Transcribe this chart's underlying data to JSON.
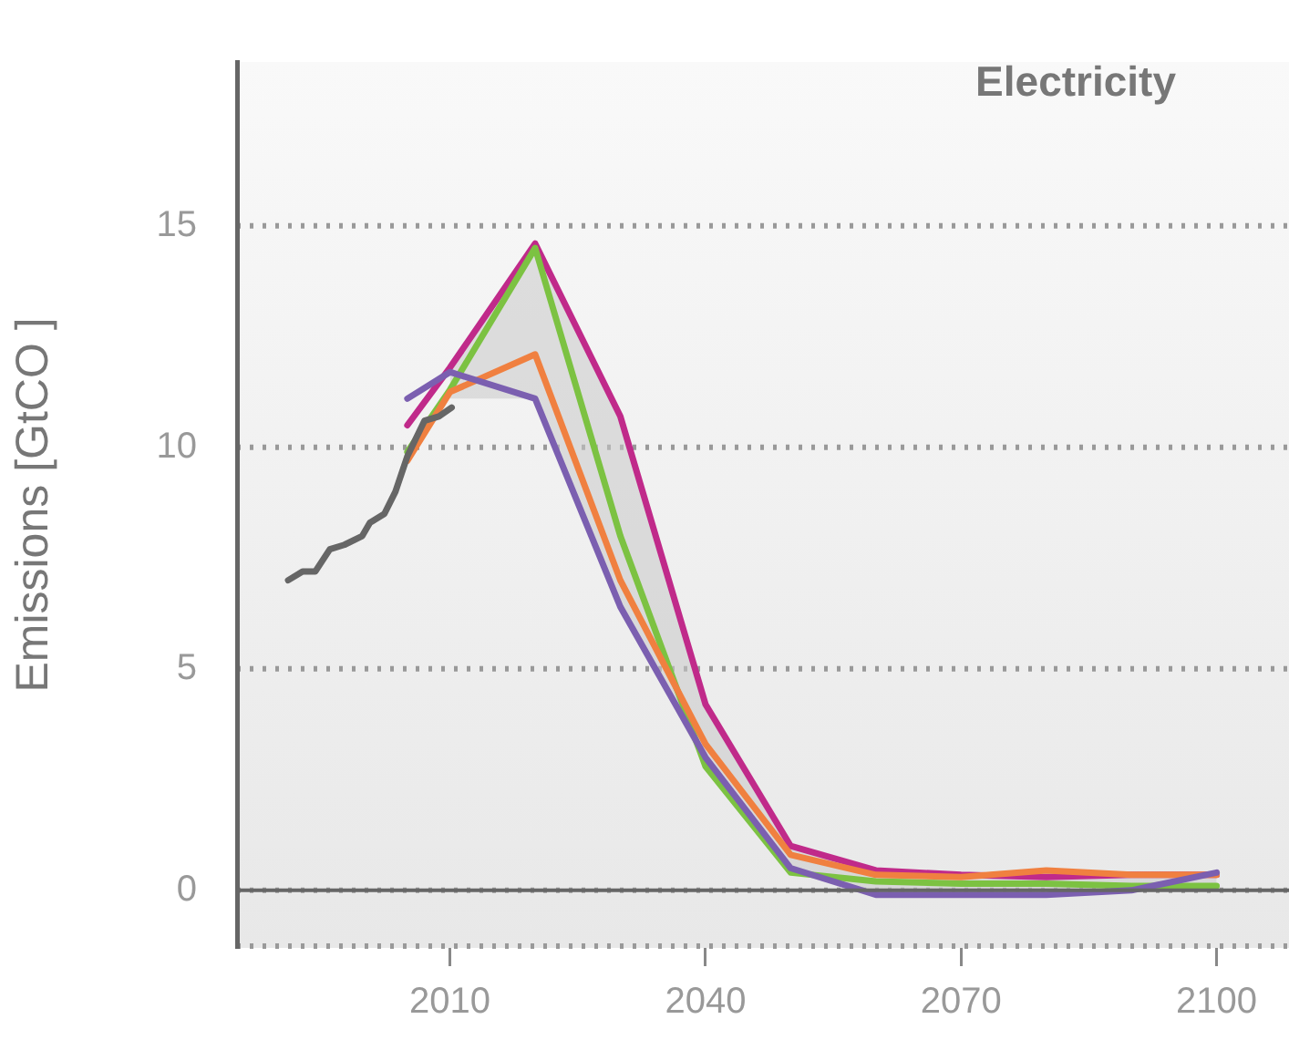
{
  "chart_data": {
    "type": "line",
    "title": "Electricity",
    "ylabel": "Emissions [GtCO ]",
    "xlim": [
      1985,
      2108.5
    ],
    "ylim": [
      -1.3,
      18.7
    ],
    "xticks": [
      2010,
      2040,
      2070,
      2100
    ],
    "yticks": [
      0,
      5,
      10,
      15
    ],
    "grid": "y",
    "legend": false,
    "marker": "none",
    "line_style": "solid",
    "ref_lines": [
      {
        "axis": "y",
        "value": 0,
        "color": "#666666"
      }
    ],
    "x": [
      2005,
      2010,
      2020,
      2030,
      2040,
      2050,
      2060,
      2070,
      2080,
      2090,
      2100
    ],
    "series": [
      {
        "color": "#666666",
        "x": [
          1991,
          1992.7,
          1994.2,
          1995.9,
          1997.6,
          1999.7,
          2000.6,
          2002.3,
          2003.6,
          2005,
          2007,
          2008.7,
          2010.2
        ],
        "values": [
          7.0,
          7.2,
          7.2,
          7.7,
          7.8,
          8.0,
          8.3,
          8.5,
          9.0,
          9.8,
          10.6,
          10.7,
          10.9
        ]
      },
      {
        "color": "#7b5fb0",
        "values": [
          11.1,
          11.7,
          11.1,
          6.4,
          3.0,
          0.5,
          -0.1,
          -0.1,
          -0.1,
          0.0,
          0.4
        ]
      },
      {
        "color": "#f08040",
        "values": [
          9.7,
          11.25,
          12.1,
          7.0,
          3.3,
          0.8,
          0.35,
          0.3,
          0.45,
          0.35,
          0.35
        ]
      },
      {
        "color": "#7cc242",
        "values": [
          9.9,
          11.3,
          14.5,
          8.0,
          2.8,
          0.4,
          0.2,
          0.15,
          0.15,
          0.1,
          0.1
        ]
      },
      {
        "color": "#c02a8a",
        "values": [
          10.5,
          11.8,
          14.6,
          10.7,
          4.2,
          1.0,
          0.45,
          0.35,
          0.3,
          0.35,
          0.35
        ],
        "lower": [
          null,
          11.1,
          11.1,
          6.4,
          2.8,
          0.4,
          -0.1,
          -0.1,
          -0.1,
          0.0,
          0.1
        ],
        "upper": [
          null,
          11.8,
          14.6,
          10.7,
          4.2,
          1.0,
          0.45,
          0.35,
          0.45,
          0.35,
          0.4
        ]
      }
    ]
  }
}
